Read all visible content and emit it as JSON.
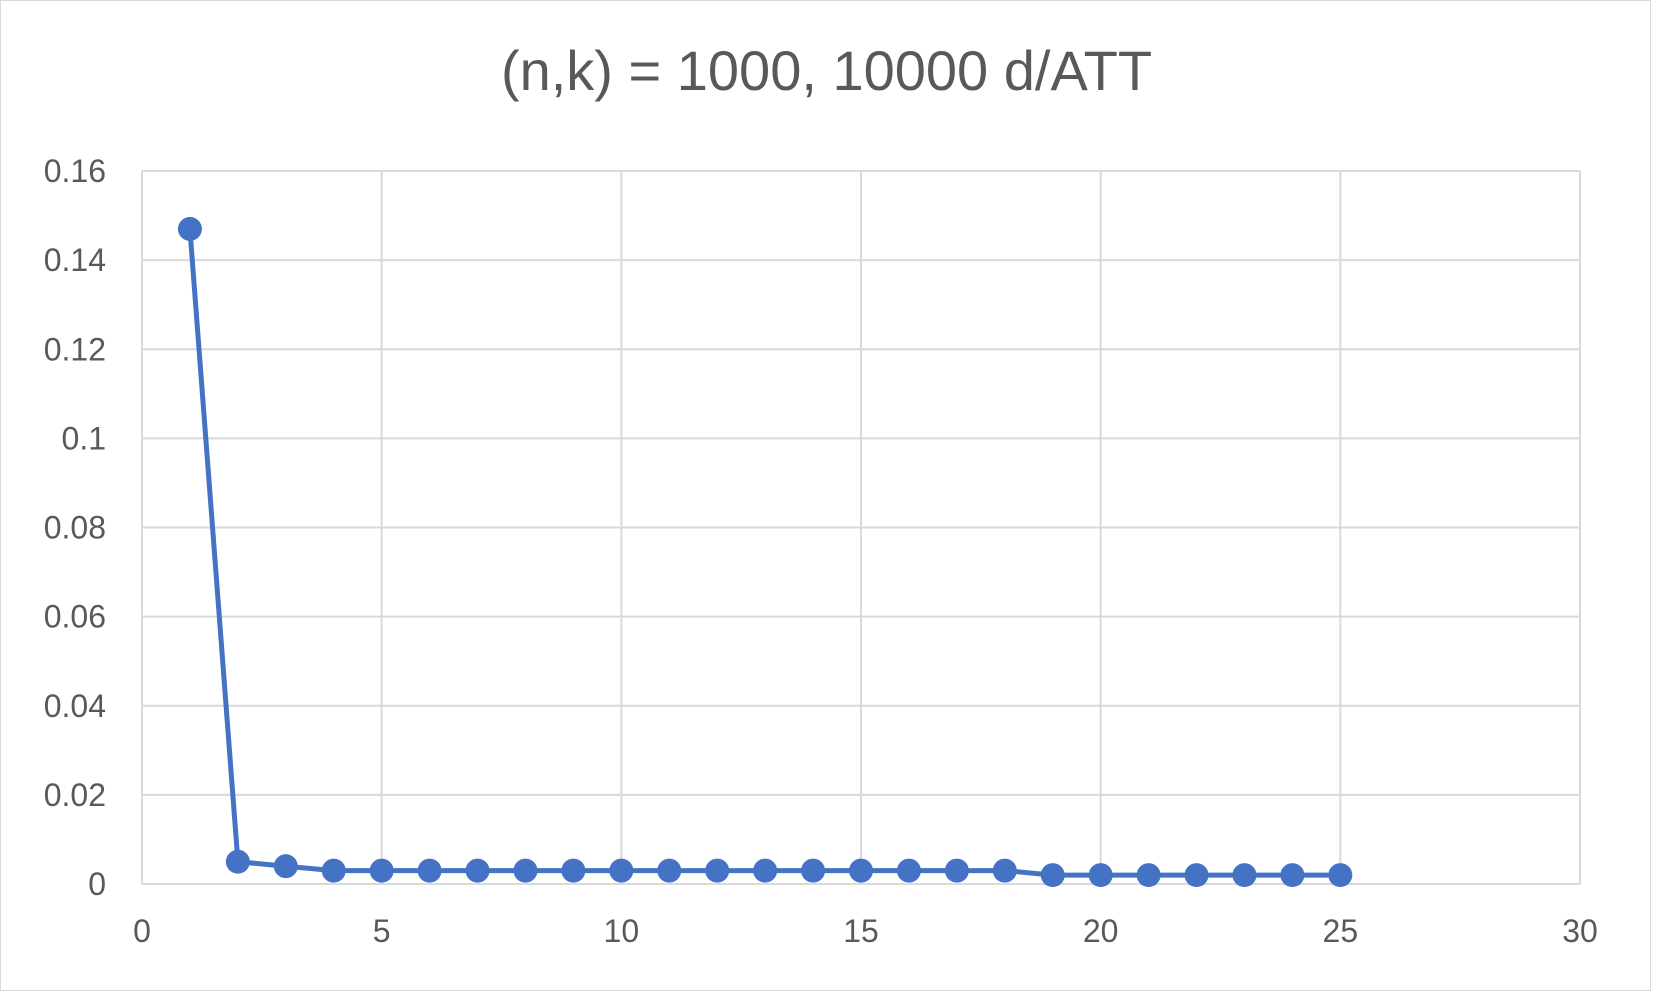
{
  "chart_data": {
    "type": "scatter",
    "title": "(n,k) = 1000, 10000 d/ATT",
    "xlabel": "",
    "ylabel": "",
    "xlim": [
      0,
      30
    ],
    "ylim": [
      0,
      0.16
    ],
    "x_ticks": [
      0,
      5,
      10,
      15,
      20,
      25,
      30
    ],
    "y_ticks": [
      0,
      0.02,
      0.04,
      0.06,
      0.08,
      0.1,
      0.12,
      0.14,
      0.16
    ],
    "x_tick_labels": [
      "0",
      "5",
      "10",
      "15",
      "20",
      "25",
      "30"
    ],
    "y_tick_labels": [
      "0",
      "0.02",
      "0.04",
      "0.06",
      "0.08",
      "0.1",
      "0.12",
      "0.14",
      "0.16"
    ],
    "grid": true,
    "legend": "none",
    "series": [
      {
        "color": "#4472c4",
        "style": "line-with-markers",
        "x": [
          1,
          2,
          3,
          4,
          5,
          6,
          7,
          8,
          9,
          10,
          11,
          12,
          13,
          14,
          15,
          16,
          17,
          18,
          19,
          20,
          21,
          22,
          23,
          24,
          25
        ],
        "y": [
          0.147,
          0.005,
          0.004,
          0.003,
          0.003,
          0.003,
          0.003,
          0.003,
          0.003,
          0.003,
          0.003,
          0.003,
          0.003,
          0.003,
          0.003,
          0.003,
          0.003,
          0.003,
          0.002,
          0.002,
          0.002,
          0.002,
          0.002,
          0.002,
          0.002
        ]
      }
    ]
  }
}
